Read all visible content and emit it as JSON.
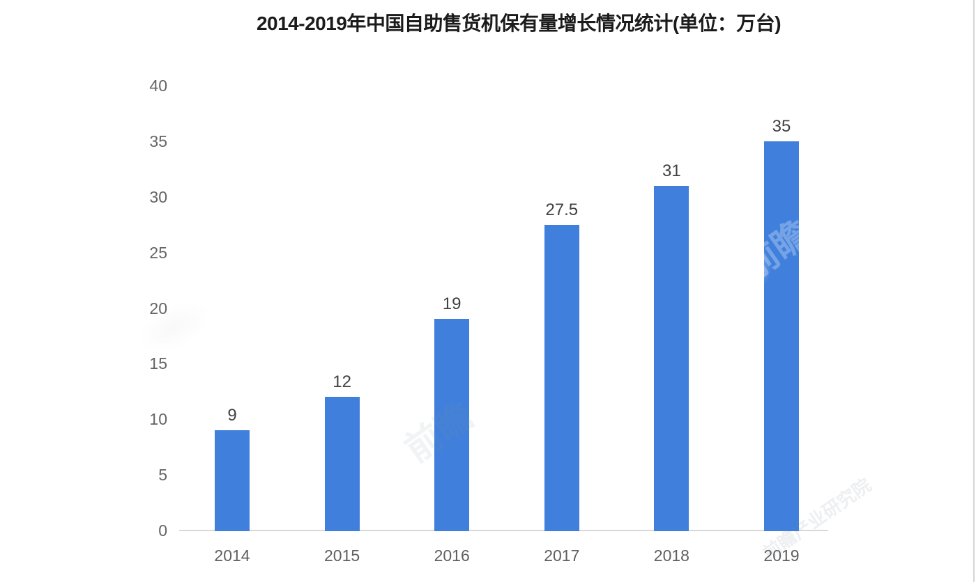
{
  "chart_data": {
    "type": "bar",
    "title": "2014-2019年中国自助售货机保有量增长情况统计(单位：万台)",
    "categories": [
      "2014",
      "2015",
      "2016",
      "2017",
      "2018",
      "2019"
    ],
    "values": [
      9,
      12,
      19,
      27.5,
      31,
      35
    ],
    "value_labels": [
      "9",
      "12",
      "19",
      "27.5",
      "31",
      "35"
    ],
    "xlabel": "",
    "ylabel": "",
    "ylim": [
      0,
      40
    ],
    "yticks": [
      0,
      5,
      10,
      15,
      20,
      25,
      30,
      35,
      40
    ],
    "grid": false,
    "legend": false,
    "bar_color": "#4080dc",
    "axis_line_color": "#d8d8d8",
    "ytick_label_color": "#646464",
    "xtick_label_color": "#5f5f5f",
    "value_label_color": "#414141",
    "title_color": "#1b1b1b"
  },
  "watermark": {
    "short": "前瞻",
    "full": "前瞻产业研究院"
  }
}
